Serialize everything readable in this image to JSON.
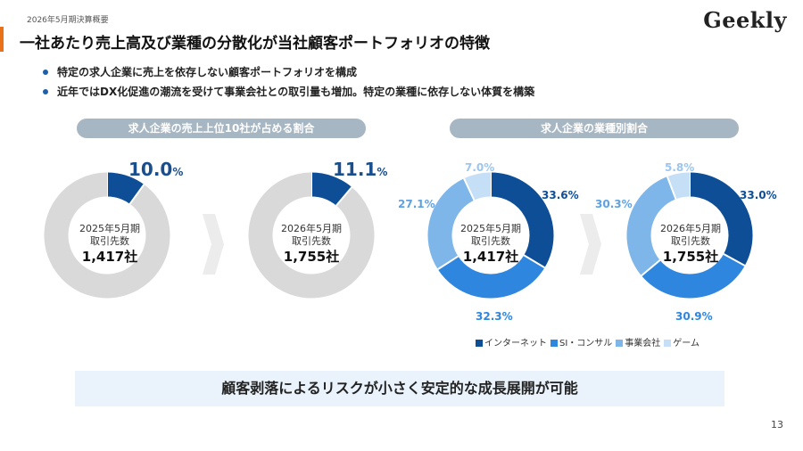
{
  "header": {
    "subtitle": "2026年5月期決算概要",
    "logo": "Geekly",
    "title": "一社あたり売上高及び業種の分散化が当社顧客ポートフォリオの特徴"
  },
  "bullets": [
    "特定の求人企業に売上を依存しない顧客ポートフォリオを構成",
    "近年ではDX化促進の潮流を受けて事業会社との取引量も増加。特定の業種に依存しない体質を構築"
  ],
  "left_section_title": "求人企業の売上上位10社が占める割合",
  "right_section_title": "求人企業の業種別割合",
  "colors": {
    "navy": "#0e4e96",
    "blue": "#2f86df",
    "light_blue": "#7eb6ea",
    "pale_blue": "#c5dff6",
    "gray_ring": "#d9d9d9",
    "arrow": "#ececec"
  },
  "chart_data": [
    {
      "type": "pie",
      "variant": "donut",
      "period": "2025年5月期",
      "center_label": "取引先数",
      "center_value": "1,417社",
      "top10_share": 10.0,
      "top10_label_value": "10.0",
      "top10_label_unit": "%"
    },
    {
      "type": "pie",
      "variant": "donut",
      "period": "2026年5月期",
      "center_label": "取引先数",
      "center_value": "1,755社",
      "top10_share": 11.1,
      "top10_label_value": "11.1",
      "top10_label_unit": "%"
    },
    {
      "type": "pie",
      "variant": "donut",
      "period": "2025年5月期",
      "center_label": "取引先数",
      "center_value": "1,417社",
      "categories": [
        "インターネット",
        "SI・コンサル",
        "事業会社",
        "ゲーム"
      ],
      "values": [
        33.6,
        32.3,
        27.1,
        7.0
      ],
      "labels": [
        "33.6%",
        "32.3%",
        "27.1%",
        "7.0%"
      ]
    },
    {
      "type": "pie",
      "variant": "donut",
      "period": "2026年5月期",
      "center_label": "取引先数",
      "center_value": "1,755社",
      "categories": [
        "インターネット",
        "SI・コンサル",
        "事業会社",
        "ゲーム"
      ],
      "values": [
        33.0,
        30.9,
        30.3,
        5.8
      ],
      "labels": [
        "33.0%",
        "30.9%",
        "30.3%",
        "5.8%"
      ]
    }
  ],
  "legend": [
    "インターネット",
    "SI・コンサル",
    "事業会社",
    "ゲーム"
  ],
  "banner": "顧客剥落によるリスクが小さく安定的な成長展開が可能",
  "page_number": "13"
}
